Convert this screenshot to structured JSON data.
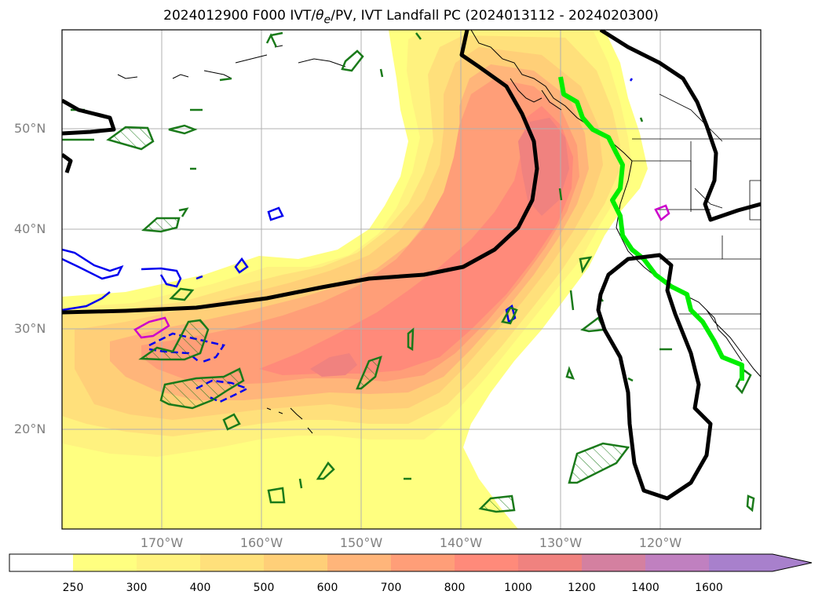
{
  "title_prefix": "2024012900 F000 IVT/",
  "title_theta": "θ",
  "title_theta_sub": "e",
  "title_suffix": "/PV, IVT Landfall PC (2024013112 - 2024020300)",
  "latitude_labels": [
    "50°N",
    "40°N",
    "30°N",
    "20°N"
  ],
  "longitude_labels": [
    "170°W",
    "160°W",
    "150°W",
    "140°W",
    "130°W",
    "120°W"
  ],
  "colorbar": {
    "tick_labels": [
      "250",
      "300",
      "400",
      "500",
      "600",
      "700",
      "800",
      "1000",
      "1200",
      "1400",
      "1600"
    ],
    "colors": [
      "#ffffff",
      "#ffff80",
      "#fff27f",
      "#ffe07b",
      "#ffcf78",
      "#ffb57a",
      "#ff9e78",
      "#ff8a7a",
      "#f0827f",
      "#d480a0",
      "#c080c0",
      "#a880cc"
    ]
  }
}
